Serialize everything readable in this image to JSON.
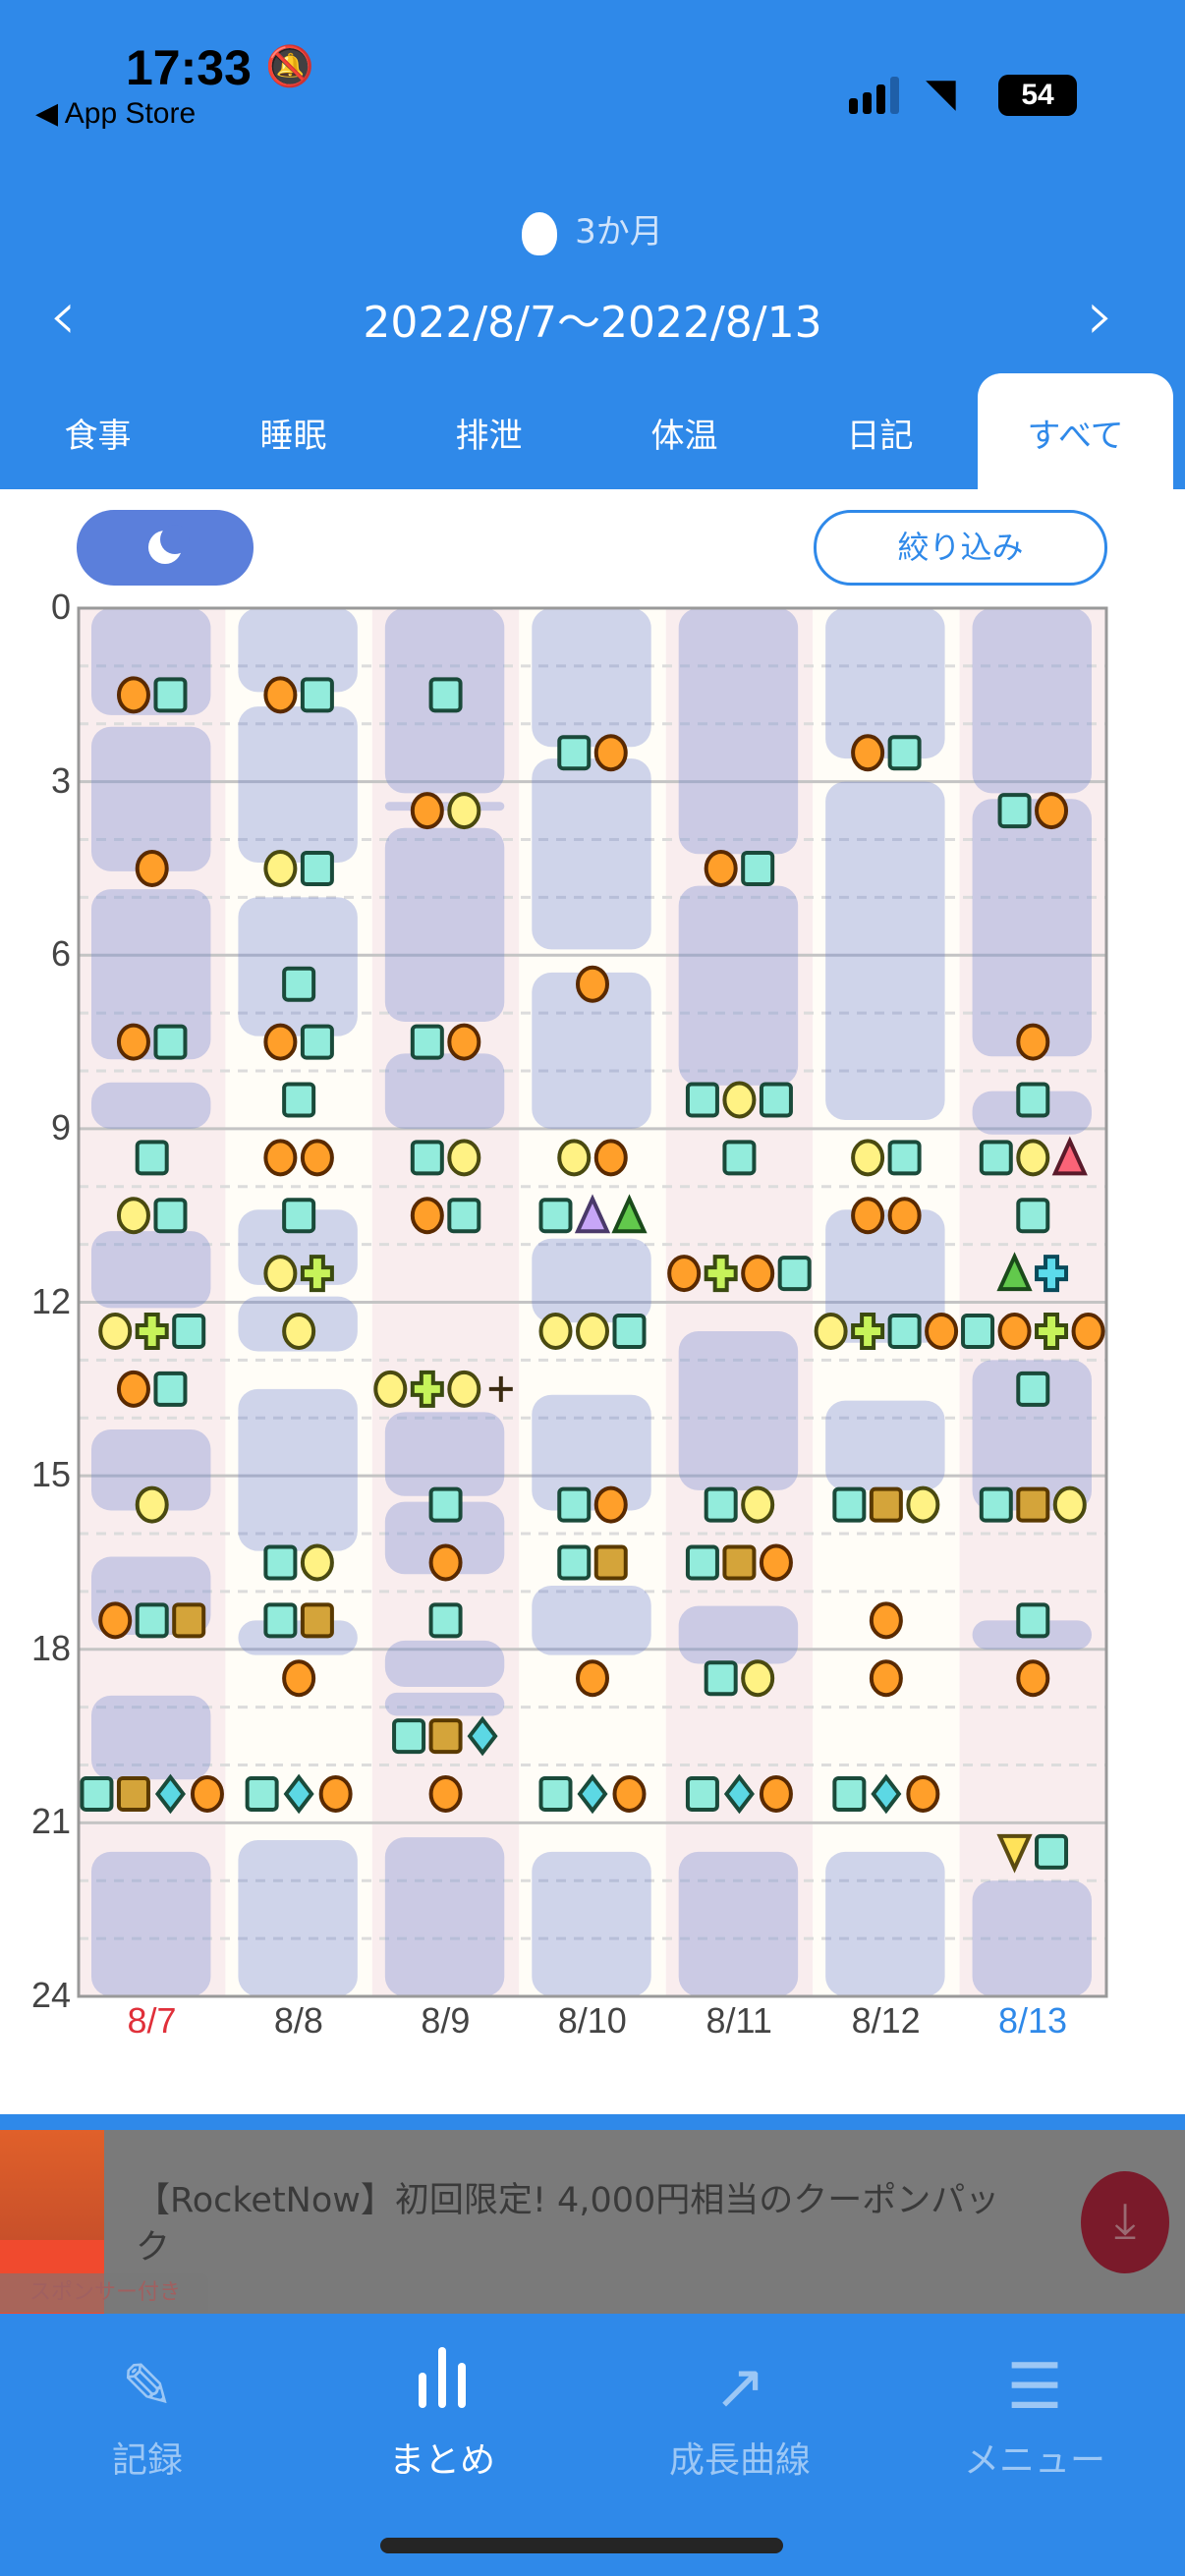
{
  "status": {
    "time": "17:33",
    "back": "◀ App Store",
    "battery": "54"
  },
  "header": {
    "age": "3か月",
    "range": "2022/8/7〜2022/8/13",
    "prev": "‹",
    "next": "›"
  },
  "tabs": [
    "食事",
    "睡眠",
    "排泄",
    "体温",
    "日記",
    "すべて"
  ],
  "toolbar": {
    "filter_label": "絞り込み"
  },
  "chart_data": {
    "type": "timeline",
    "y_ticks": [
      "0",
      "3",
      "6",
      "9",
      "12",
      "15",
      "18",
      "21",
      "24"
    ],
    "ylim": [
      0,
      24
    ],
    "colors": {
      "orange-circle": "#ff9f2a",
      "teal-square": "#93ecdc",
      "yellow-circle": "#fff284",
      "green-cross": "#c6f35a",
      "brown-square": "#d4a43a",
      "cyan-diamond": "#5cd8e4",
      "purple-triangle": "#c7a6f7",
      "green-triangle": "#62c94c",
      "red-triangle": "#fb6377",
      "blue-cross": "#5cdbec",
      "yellow-down-triangle": "#ffe25a"
    },
    "days": [
      {
        "label": "8/7",
        "color": "#e0303a",
        "sleep": [
          [
            0,
            1.85
          ],
          [
            2.05,
            4.55
          ],
          [
            4.86,
            7.8
          ],
          [
            8.2,
            9.0
          ],
          [
            10.77,
            12.1
          ],
          [
            14.2,
            15.6
          ],
          [
            16.4,
            17.75
          ],
          [
            18.8,
            20.25
          ],
          [
            21.5,
            24
          ]
        ],
        "events": [
          {
            "h": 1.5,
            "m": [
              "orange-circle",
              "teal-square"
            ]
          },
          {
            "h": 4.5,
            "m": [
              "orange-circle"
            ]
          },
          {
            "h": 7.5,
            "m": [
              "orange-circle",
              "teal-square"
            ]
          },
          {
            "h": 9.5,
            "m": [
              "teal-square"
            ]
          },
          {
            "h": 10.5,
            "m": [
              "yellow-circle",
              "teal-square"
            ]
          },
          {
            "h": 12.5,
            "m": [
              "yellow-circle",
              "green-cross",
              "teal-square"
            ]
          },
          {
            "h": 13.5,
            "m": [
              "orange-circle",
              "teal-square"
            ]
          },
          {
            "h": 15.5,
            "m": [
              "yellow-circle"
            ]
          },
          {
            "h": 17.5,
            "m": [
              "orange-circle",
              "teal-square",
              "brown-square"
            ]
          },
          {
            "h": 20.5,
            "m": [
              "teal-square",
              "brown-square",
              "cyan-diamond",
              "orange-circle"
            ]
          }
        ]
      },
      {
        "label": "8/8",
        "color": "#444444",
        "sleep": [
          [
            0,
            1.45
          ],
          [
            1.7,
            4.4
          ],
          [
            5.0,
            7.4
          ],
          [
            10.4,
            11.7
          ],
          [
            11.9,
            12.85
          ],
          [
            13.5,
            16.3
          ],
          [
            17.5,
            18.1
          ],
          [
            21.3,
            24
          ]
        ],
        "events": [
          {
            "h": 1.5,
            "m": [
              "orange-circle",
              "teal-square"
            ]
          },
          {
            "h": 4.5,
            "m": [
              "yellow-circle",
              "teal-square"
            ]
          },
          {
            "h": 6.5,
            "m": [
              "teal-square"
            ]
          },
          {
            "h": 7.5,
            "m": [
              "orange-circle",
              "teal-square"
            ]
          },
          {
            "h": 8.5,
            "m": [
              "teal-square"
            ]
          },
          {
            "h": 9.5,
            "m": [
              "orange-circle",
              "orange-circle"
            ]
          },
          {
            "h": 10.5,
            "m": [
              "teal-square"
            ]
          },
          {
            "h": 11.5,
            "m": [
              "yellow-circle",
              "green-cross"
            ]
          },
          {
            "h": 12.5,
            "m": [
              "yellow-circle"
            ]
          },
          {
            "h": 16.5,
            "m": [
              "teal-square",
              "yellow-circle"
            ]
          },
          {
            "h": 17.5,
            "m": [
              "teal-square",
              "brown-square"
            ]
          },
          {
            "h": 18.5,
            "m": [
              "orange-circle"
            ]
          },
          {
            "h": 20.5,
            "m": [
              "teal-square",
              "cyan-diamond",
              "orange-circle"
            ]
          }
        ]
      },
      {
        "label": "8/9",
        "color": "#444444",
        "sleep": [
          [
            0,
            3.2
          ],
          [
            3.35,
            3.5
          ],
          [
            3.8,
            7.15
          ],
          [
            7.7,
            9.0
          ],
          [
            13.9,
            15.35
          ],
          [
            15.45,
            16.7
          ],
          [
            17.85,
            18.65
          ],
          [
            18.75,
            19.15
          ],
          [
            21.25,
            24
          ]
        ],
        "events": [
          {
            "h": 1.5,
            "m": [
              "teal-square"
            ]
          },
          {
            "h": 3.5,
            "m": [
              "orange-circle",
              "yellow-circle"
            ]
          },
          {
            "h": 7.5,
            "m": [
              "teal-square",
              "orange-circle"
            ]
          },
          {
            "h": 9.5,
            "m": [
              "teal-square",
              "yellow-circle"
            ]
          },
          {
            "h": 10.5,
            "m": [
              "orange-circle",
              "teal-square"
            ]
          },
          {
            "h": 13.5,
            "m": [
              "yellow-circle",
              "green-cross",
              "yellow-circle",
              "plus"
            ]
          },
          {
            "h": 15.5,
            "m": [
              "teal-square"
            ]
          },
          {
            "h": 16.5,
            "m": [
              "orange-circle"
            ]
          },
          {
            "h": 17.5,
            "m": [
              "teal-square"
            ]
          },
          {
            "h": 19.5,
            "m": [
              "teal-square",
              "brown-square",
              "cyan-diamond"
            ]
          },
          {
            "h": 20.5,
            "m": [
              "orange-circle"
            ]
          }
        ]
      },
      {
        "label": "8/10",
        "color": "#444444",
        "sleep": [
          [
            0,
            2.4
          ],
          [
            2.6,
            5.9
          ],
          [
            6.3,
            9.0
          ],
          [
            10.9,
            12.35
          ],
          [
            13.6,
            15.6
          ],
          [
            16.9,
            18.1
          ],
          [
            21.5,
            24
          ]
        ],
        "events": [
          {
            "h": 2.5,
            "m": [
              "teal-square",
              "orange-circle"
            ]
          },
          {
            "h": 6.5,
            "m": [
              "orange-circle"
            ]
          },
          {
            "h": 9.5,
            "m": [
              "yellow-circle",
              "orange-circle"
            ]
          },
          {
            "h": 10.5,
            "m": [
              "teal-square",
              "purple-triangle",
              "green-triangle"
            ]
          },
          {
            "h": 12.5,
            "m": [
              "yellow-circle",
              "yellow-circle",
              "teal-square"
            ]
          },
          {
            "h": 15.5,
            "m": [
              "teal-square",
              "orange-circle"
            ]
          },
          {
            "h": 16.5,
            "m": [
              "teal-square",
              "brown-square"
            ]
          },
          {
            "h": 18.5,
            "m": [
              "orange-circle"
            ]
          },
          {
            "h": 20.5,
            "m": [
              "teal-square",
              "cyan-diamond",
              "orange-circle"
            ]
          }
        ]
      },
      {
        "label": "8/11",
        "color": "#444444",
        "sleep": [
          [
            0,
            4.25
          ],
          [
            4.8,
            8.25
          ],
          [
            12.5,
            15.25
          ],
          [
            17.25,
            18.25
          ],
          [
            21.5,
            24
          ]
        ],
        "events": [
          {
            "h": 4.5,
            "m": [
              "orange-circle",
              "teal-square"
            ]
          },
          {
            "h": 8.5,
            "m": [
              "teal-square",
              "yellow-circle",
              "teal-square"
            ]
          },
          {
            "h": 9.5,
            "m": [
              "teal-square"
            ]
          },
          {
            "h": 11.5,
            "m": [
              "orange-circle",
              "green-cross",
              "orange-circle",
              "teal-square"
            ]
          },
          {
            "h": 15.5,
            "m": [
              "teal-square",
              "yellow-circle"
            ]
          },
          {
            "h": 16.5,
            "m": [
              "teal-square",
              "brown-square",
              "orange-circle"
            ]
          },
          {
            "h": 18.5,
            "m": [
              "teal-square",
              "yellow-circle"
            ]
          },
          {
            "h": 20.5,
            "m": [
              "teal-square",
              "cyan-diamond",
              "orange-circle"
            ]
          }
        ]
      },
      {
        "label": "8/12",
        "color": "#444444",
        "sleep": [
          [
            0,
            2.6
          ],
          [
            3.0,
            8.85
          ],
          [
            10.4,
            12.7
          ],
          [
            13.7,
            15.25
          ],
          [
            21.5,
            24
          ]
        ],
        "events": [
          {
            "h": 2.5,
            "m": [
              "orange-circle",
              "teal-square"
            ]
          },
          {
            "h": 9.5,
            "m": [
              "yellow-circle",
              "teal-square"
            ]
          },
          {
            "h": 10.5,
            "m": [
              "orange-circle",
              "orange-circle"
            ]
          },
          {
            "h": 12.5,
            "m": [
              "yellow-circle",
              "green-cross",
              "teal-square",
              "orange-circle"
            ]
          },
          {
            "h": 15.5,
            "m": [
              "teal-square",
              "brown-square",
              "yellow-circle"
            ]
          },
          {
            "h": 17.5,
            "m": [
              "orange-circle"
            ]
          },
          {
            "h": 18.5,
            "m": [
              "orange-circle"
            ]
          },
          {
            "h": 20.5,
            "m": [
              "teal-square",
              "cyan-diamond",
              "orange-circle"
            ]
          }
        ]
      },
      {
        "label": "8/13",
        "color": "#2f89e9",
        "sleep": [
          [
            0,
            3.2
          ],
          [
            3.3,
            7.75
          ],
          [
            8.35,
            9.1
          ],
          [
            13.0,
            15.6
          ],
          [
            17.5,
            18.0
          ],
          [
            22.0,
            24
          ]
        ],
        "events": [
          {
            "h": 3.5,
            "m": [
              "teal-square",
              "orange-circle"
            ]
          },
          {
            "h": 7.5,
            "m": [
              "orange-circle"
            ]
          },
          {
            "h": 8.5,
            "m": [
              "teal-square"
            ]
          },
          {
            "h": 9.5,
            "m": [
              "teal-square",
              "yellow-circle",
              "red-triangle"
            ]
          },
          {
            "h": 10.5,
            "m": [
              "teal-square"
            ]
          },
          {
            "h": 11.5,
            "m": [
              "green-triangle",
              "blue-cross"
            ]
          },
          {
            "h": 12.5,
            "m": [
              "teal-square",
              "orange-circle",
              "green-cross",
              "orange-circle"
            ]
          },
          {
            "h": 13.5,
            "m": [
              "teal-square"
            ]
          },
          {
            "h": 15.5,
            "m": [
              "teal-square",
              "brown-square",
              "yellow-circle"
            ]
          },
          {
            "h": 17.5,
            "m": [
              "teal-square"
            ]
          },
          {
            "h": 18.5,
            "m": [
              "orange-circle"
            ]
          },
          {
            "h": 21.5,
            "m": [
              "yellow-down-triangle",
              "teal-square"
            ]
          }
        ]
      }
    ]
  },
  "ad": {
    "text": "【RocketNow】初回限定! 4,000円相当のクーポンパック",
    "badge": "スポンサー付き"
  },
  "nav": [
    {
      "label": "記録",
      "icon": "pencil-icon"
    },
    {
      "label": "まとめ",
      "icon": "bar-chart-icon"
    },
    {
      "label": "成長曲線",
      "icon": "trend-icon"
    },
    {
      "label": "メニュー",
      "icon": "menu-icon"
    }
  ]
}
